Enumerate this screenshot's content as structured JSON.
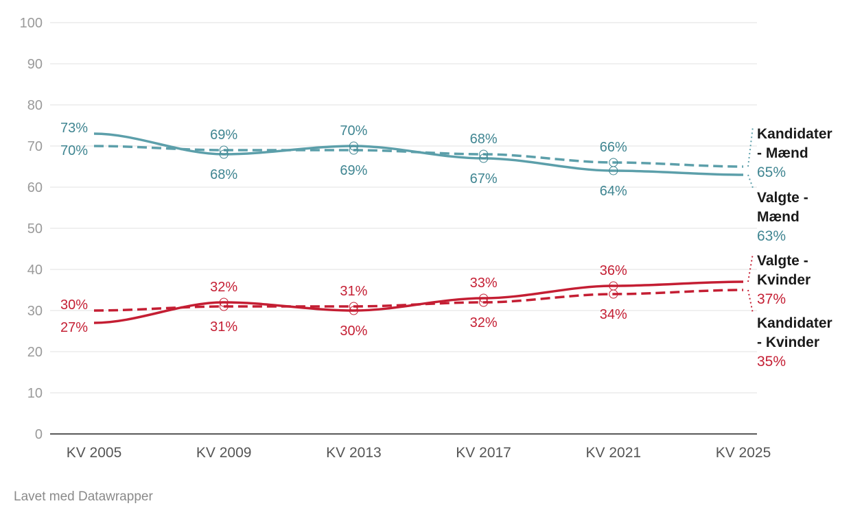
{
  "chart_data": {
    "type": "line",
    "categories": [
      "KV 2005",
      "KV 2009",
      "KV 2013",
      "KV 2017",
      "KV 2021",
      "KV 2025"
    ],
    "ylim": [
      0,
      100
    ],
    "yticks": [
      0,
      10,
      20,
      30,
      40,
      50,
      60,
      70,
      80,
      90,
      100
    ],
    "grid": true,
    "label_suffix": "%",
    "legend_placement": "right (direct labels)",
    "series": [
      {
        "name": "Kandidater - Mænd",
        "name_lines": [
          "Kandidater",
          "- Mænd"
        ],
        "values": [
          70,
          69,
          69,
          68,
          66,
          65
        ],
        "color": "#5c9faa",
        "label_color": "#3f8591",
        "dash": true
      },
      {
        "name": "Valgte - Mænd",
        "name_lines": [
          "Valgte -",
          "Mænd"
        ],
        "values": [
          73,
          68,
          70,
          67,
          64,
          63
        ],
        "color": "#5c9faa",
        "label_color": "#3f8591",
        "dash": false
      },
      {
        "name": "Valgte - Kvinder",
        "name_lines": [
          "Valgte -",
          "Kvinder"
        ],
        "values": [
          27,
          32,
          30,
          33,
          36,
          37
        ],
        "color": "#c41e33",
        "label_color": "#c41e33",
        "dash": false
      },
      {
        "name": "Kandidater - Kvinder",
        "name_lines": [
          "Kandidater",
          "- Kvinder"
        ],
        "values": [
          30,
          31,
          31,
          32,
          34,
          35
        ],
        "color": "#c41e33",
        "label_color": "#c41e33",
        "dash": true
      }
    ]
  },
  "footer": "Lavet med Datawrapper"
}
